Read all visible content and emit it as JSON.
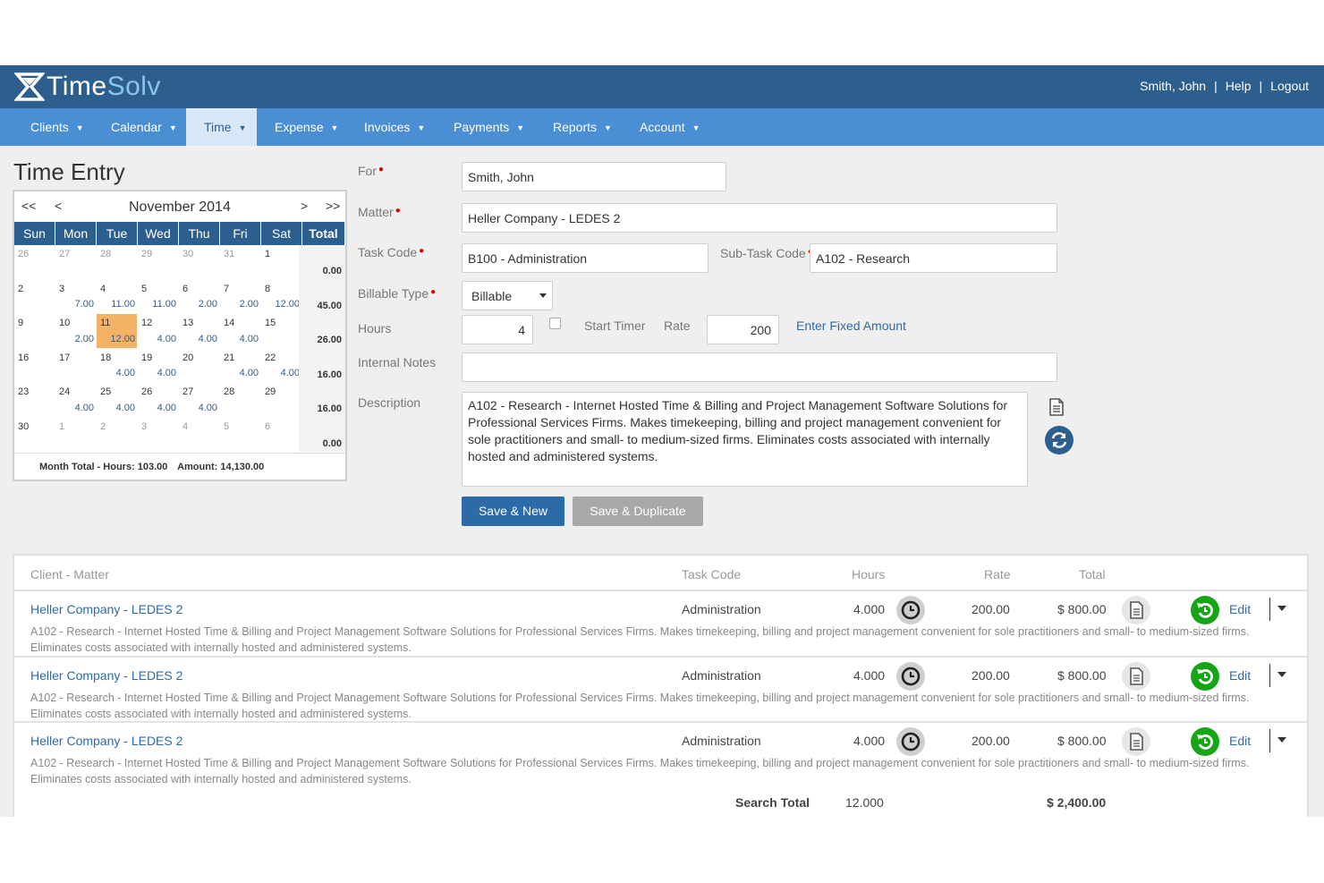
{
  "app": {
    "logo_time": "Time",
    "logo_solv": "Solv",
    "user": "Smith, John",
    "help": "Help",
    "logout": "Logout",
    "separator": "|"
  },
  "nav": {
    "items": [
      {
        "label": "Clients"
      },
      {
        "label": "Calendar"
      },
      {
        "label": "Time"
      },
      {
        "label": "Expense"
      },
      {
        "label": "Invoices"
      },
      {
        "label": "Payments"
      },
      {
        "label": "Reports"
      },
      {
        "label": "Account"
      }
    ],
    "active": "Time"
  },
  "page": {
    "title": "Time Entry"
  },
  "calendar": {
    "prev_year": "<<",
    "prev_month": "<",
    "next_month": ">",
    "next_year": ">>",
    "month": "November 2014",
    "days_of_week": [
      "Sun",
      "Mon",
      "Tue",
      "Wed",
      "Thu",
      "Fri",
      "Sat"
    ],
    "total_header": "Total",
    "weeks": [
      {
        "days": [
          {
            "d": "26",
            "h": "",
            "o": true
          },
          {
            "d": "27",
            "h": "",
            "o": true
          },
          {
            "d": "28",
            "h": "",
            "o": true
          },
          {
            "d": "29",
            "h": "",
            "o": true
          },
          {
            "d": "30",
            "h": "",
            "o": true
          },
          {
            "d": "31",
            "h": "",
            "o": true
          },
          {
            "d": "1",
            "h": ""
          }
        ],
        "total": "0.00"
      },
      {
        "days": [
          {
            "d": "2",
            "h": ""
          },
          {
            "d": "3",
            "h": "7.00"
          },
          {
            "d": "4",
            "h": "11.00"
          },
          {
            "d": "5",
            "h": "11.00"
          },
          {
            "d": "6",
            "h": "2.00"
          },
          {
            "d": "7",
            "h": "2.00"
          },
          {
            "d": "8",
            "h": "12.00"
          }
        ],
        "total": "45.00"
      },
      {
        "days": [
          {
            "d": "9",
            "h": ""
          },
          {
            "d": "10",
            "h": "2.00"
          },
          {
            "d": "11",
            "h": "12.00",
            "today": true
          },
          {
            "d": "12",
            "h": "4.00"
          },
          {
            "d": "13",
            "h": "4.00"
          },
          {
            "d": "14",
            "h": "4.00"
          },
          {
            "d": "15",
            "h": ""
          }
        ],
        "total": "26.00"
      },
      {
        "days": [
          {
            "d": "16",
            "h": ""
          },
          {
            "d": "17",
            "h": ""
          },
          {
            "d": "18",
            "h": "4.00"
          },
          {
            "d": "19",
            "h": "4.00"
          },
          {
            "d": "20",
            "h": ""
          },
          {
            "d": "21",
            "h": "4.00"
          },
          {
            "d": "22",
            "h": "4.00"
          }
        ],
        "total": "16.00"
      },
      {
        "days": [
          {
            "d": "23",
            "h": ""
          },
          {
            "d": "24",
            "h": "4.00"
          },
          {
            "d": "25",
            "h": "4.00"
          },
          {
            "d": "26",
            "h": "4.00"
          },
          {
            "d": "27",
            "h": "4.00"
          },
          {
            "d": "28",
            "h": ""
          },
          {
            "d": "29",
            "h": ""
          }
        ],
        "total": "16.00"
      },
      {
        "days": [
          {
            "d": "30",
            "h": ""
          },
          {
            "d": "1",
            "h": "",
            "o": true
          },
          {
            "d": "2",
            "h": "",
            "o": true
          },
          {
            "d": "3",
            "h": "",
            "o": true
          },
          {
            "d": "4",
            "h": "",
            "o": true
          },
          {
            "d": "5",
            "h": "",
            "o": true
          },
          {
            "d": "6",
            "h": "",
            "o": true
          }
        ],
        "total": "0.00"
      }
    ],
    "footer_hours": "Month Total - Hours: 103.00",
    "footer_amount": "Amount: 14,130.00"
  },
  "form": {
    "for_label": "For",
    "for_value": "Smith, John",
    "matter_label": "Matter",
    "matter_value": "Heller Company - LEDES 2",
    "task_label": "Task Code",
    "task_value": "B100 - Administration",
    "subtask_label": "Sub-Task Code",
    "subtask_value": "A102 - Research",
    "billable_label": "Billable Type",
    "billable_value": "Billable",
    "hours_label": "Hours",
    "hours_value": "4",
    "start_timer": "Start Timer",
    "rate_label": "Rate",
    "rate_value": "200",
    "fixed_amount": "Enter Fixed Amount",
    "notes_label": "Internal Notes",
    "notes_value": "",
    "desc_label": "Description",
    "desc_value": "A102 - Research - Internet Hosted Time & Billing and Project Management Software Solutions for Professional Services Firms.  Makes timekeeping, billing and project management convenient for sole practitioners and small- to medium-sized firms.  Eliminates costs associated with internally hosted and administered systems.",
    "save_new": "Save & New",
    "save_dup": "Save & Duplicate"
  },
  "table": {
    "headers": {
      "client": "Client - Matter",
      "task": "Task Code",
      "hours": "Hours",
      "rate": "Rate",
      "total": "Total"
    },
    "rows": [
      {
        "client": "Heller Company - LEDES 2",
        "task": "Administration",
        "hours": "4.000",
        "rate": "200.00",
        "total": "$ 800.00",
        "edit": "Edit",
        "desc": "A102 - Research - Internet Hosted Time & Billing and Project Management Software Solutions for Professional Services Firms.  Makes timekeeping, billing and project management convenient for sole practitioners and small- to medium-sized firms.  Eliminates costs associated with internally hosted and administered systems."
      },
      {
        "client": "Heller Company - LEDES 2",
        "task": "Administration",
        "hours": "4.000",
        "rate": "200.00",
        "total": "$ 800.00",
        "edit": "Edit",
        "desc": "A102 - Research - Internet Hosted Time & Billing and Project Management Software Solutions for Professional Services Firms.  Makes timekeeping, billing and project management convenient for sole practitioners and small- to medium-sized firms.  Eliminates costs associated with internally hosted and administered systems."
      },
      {
        "client": "Heller Company - LEDES 2",
        "task": "Administration",
        "hours": "4.000",
        "rate": "200.00",
        "total": "$ 800.00",
        "edit": "Edit",
        "desc": "A102 - Research - Internet Hosted Time & Billing and Project Management Software Solutions for Professional Services Firms.  Makes timekeeping, billing and project management convenient for sole practitioners and small- to medium-sized firms.  Eliminates costs associated with internally hosted and administered systems."
      }
    ],
    "search_total_label": "Search Total",
    "search_total_hours": "12.000",
    "search_total_amount": "$ 2,400.00"
  },
  "colors": {
    "header": "#2d5f8e",
    "nav": "#4a8ed3",
    "nav_active": "#d8e8f8",
    "primary_button": "#2d6aa8",
    "today_highlight": "#f4b266",
    "green_action": "#16a516"
  },
  "icons": [
    "timesolv-logo",
    "document-icon",
    "refresh-icon",
    "clock-icon",
    "undo-icon",
    "caret-down-icon"
  ]
}
